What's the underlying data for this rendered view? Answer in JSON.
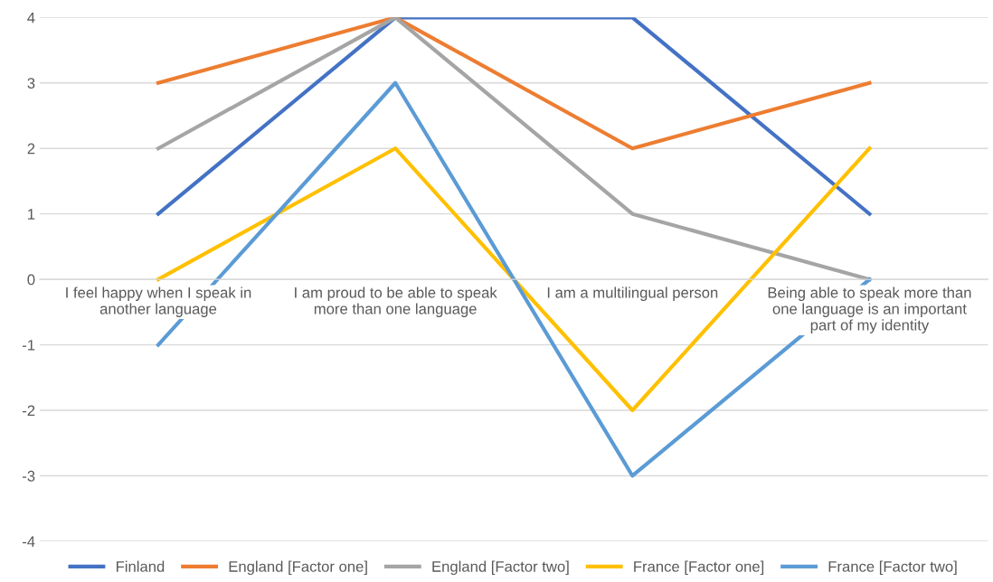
{
  "chart_data": {
    "type": "line",
    "categories": [
      "I feel happy when I speak in another language",
      "I am proud to be able to speak more than one language",
      "I am a multilingual person",
      "Being able to speak more than one language is an important part of my identity"
    ],
    "series": [
      {
        "name": "Finland",
        "color": "#4472c4",
        "values": [
          1,
          4,
          4,
          1
        ]
      },
      {
        "name": "England [Factor one]",
        "color": "#ed7d31",
        "values": [
          3,
          4,
          2,
          3
        ]
      },
      {
        "name": "England [Factor two]",
        "color": "#a5a5a5",
        "values": [
          2,
          4,
          1,
          0
        ]
      },
      {
        "name": "France [Factor one]",
        "color": "#ffc000",
        "values": [
          0,
          2,
          -2,
          2
        ]
      },
      {
        "name": "France [Factor two]",
        "color": "#5b9bd5",
        "values": [
          -1,
          3,
          -3,
          0
        ]
      }
    ],
    "ylim": [
      -4,
      4
    ],
    "yticks": [
      -4,
      -3,
      -2,
      -1,
      0,
      1,
      2,
      3,
      4
    ],
    "grid": "y",
    "legend": "bottom",
    "marker": "none",
    "line_style": "solid"
  }
}
